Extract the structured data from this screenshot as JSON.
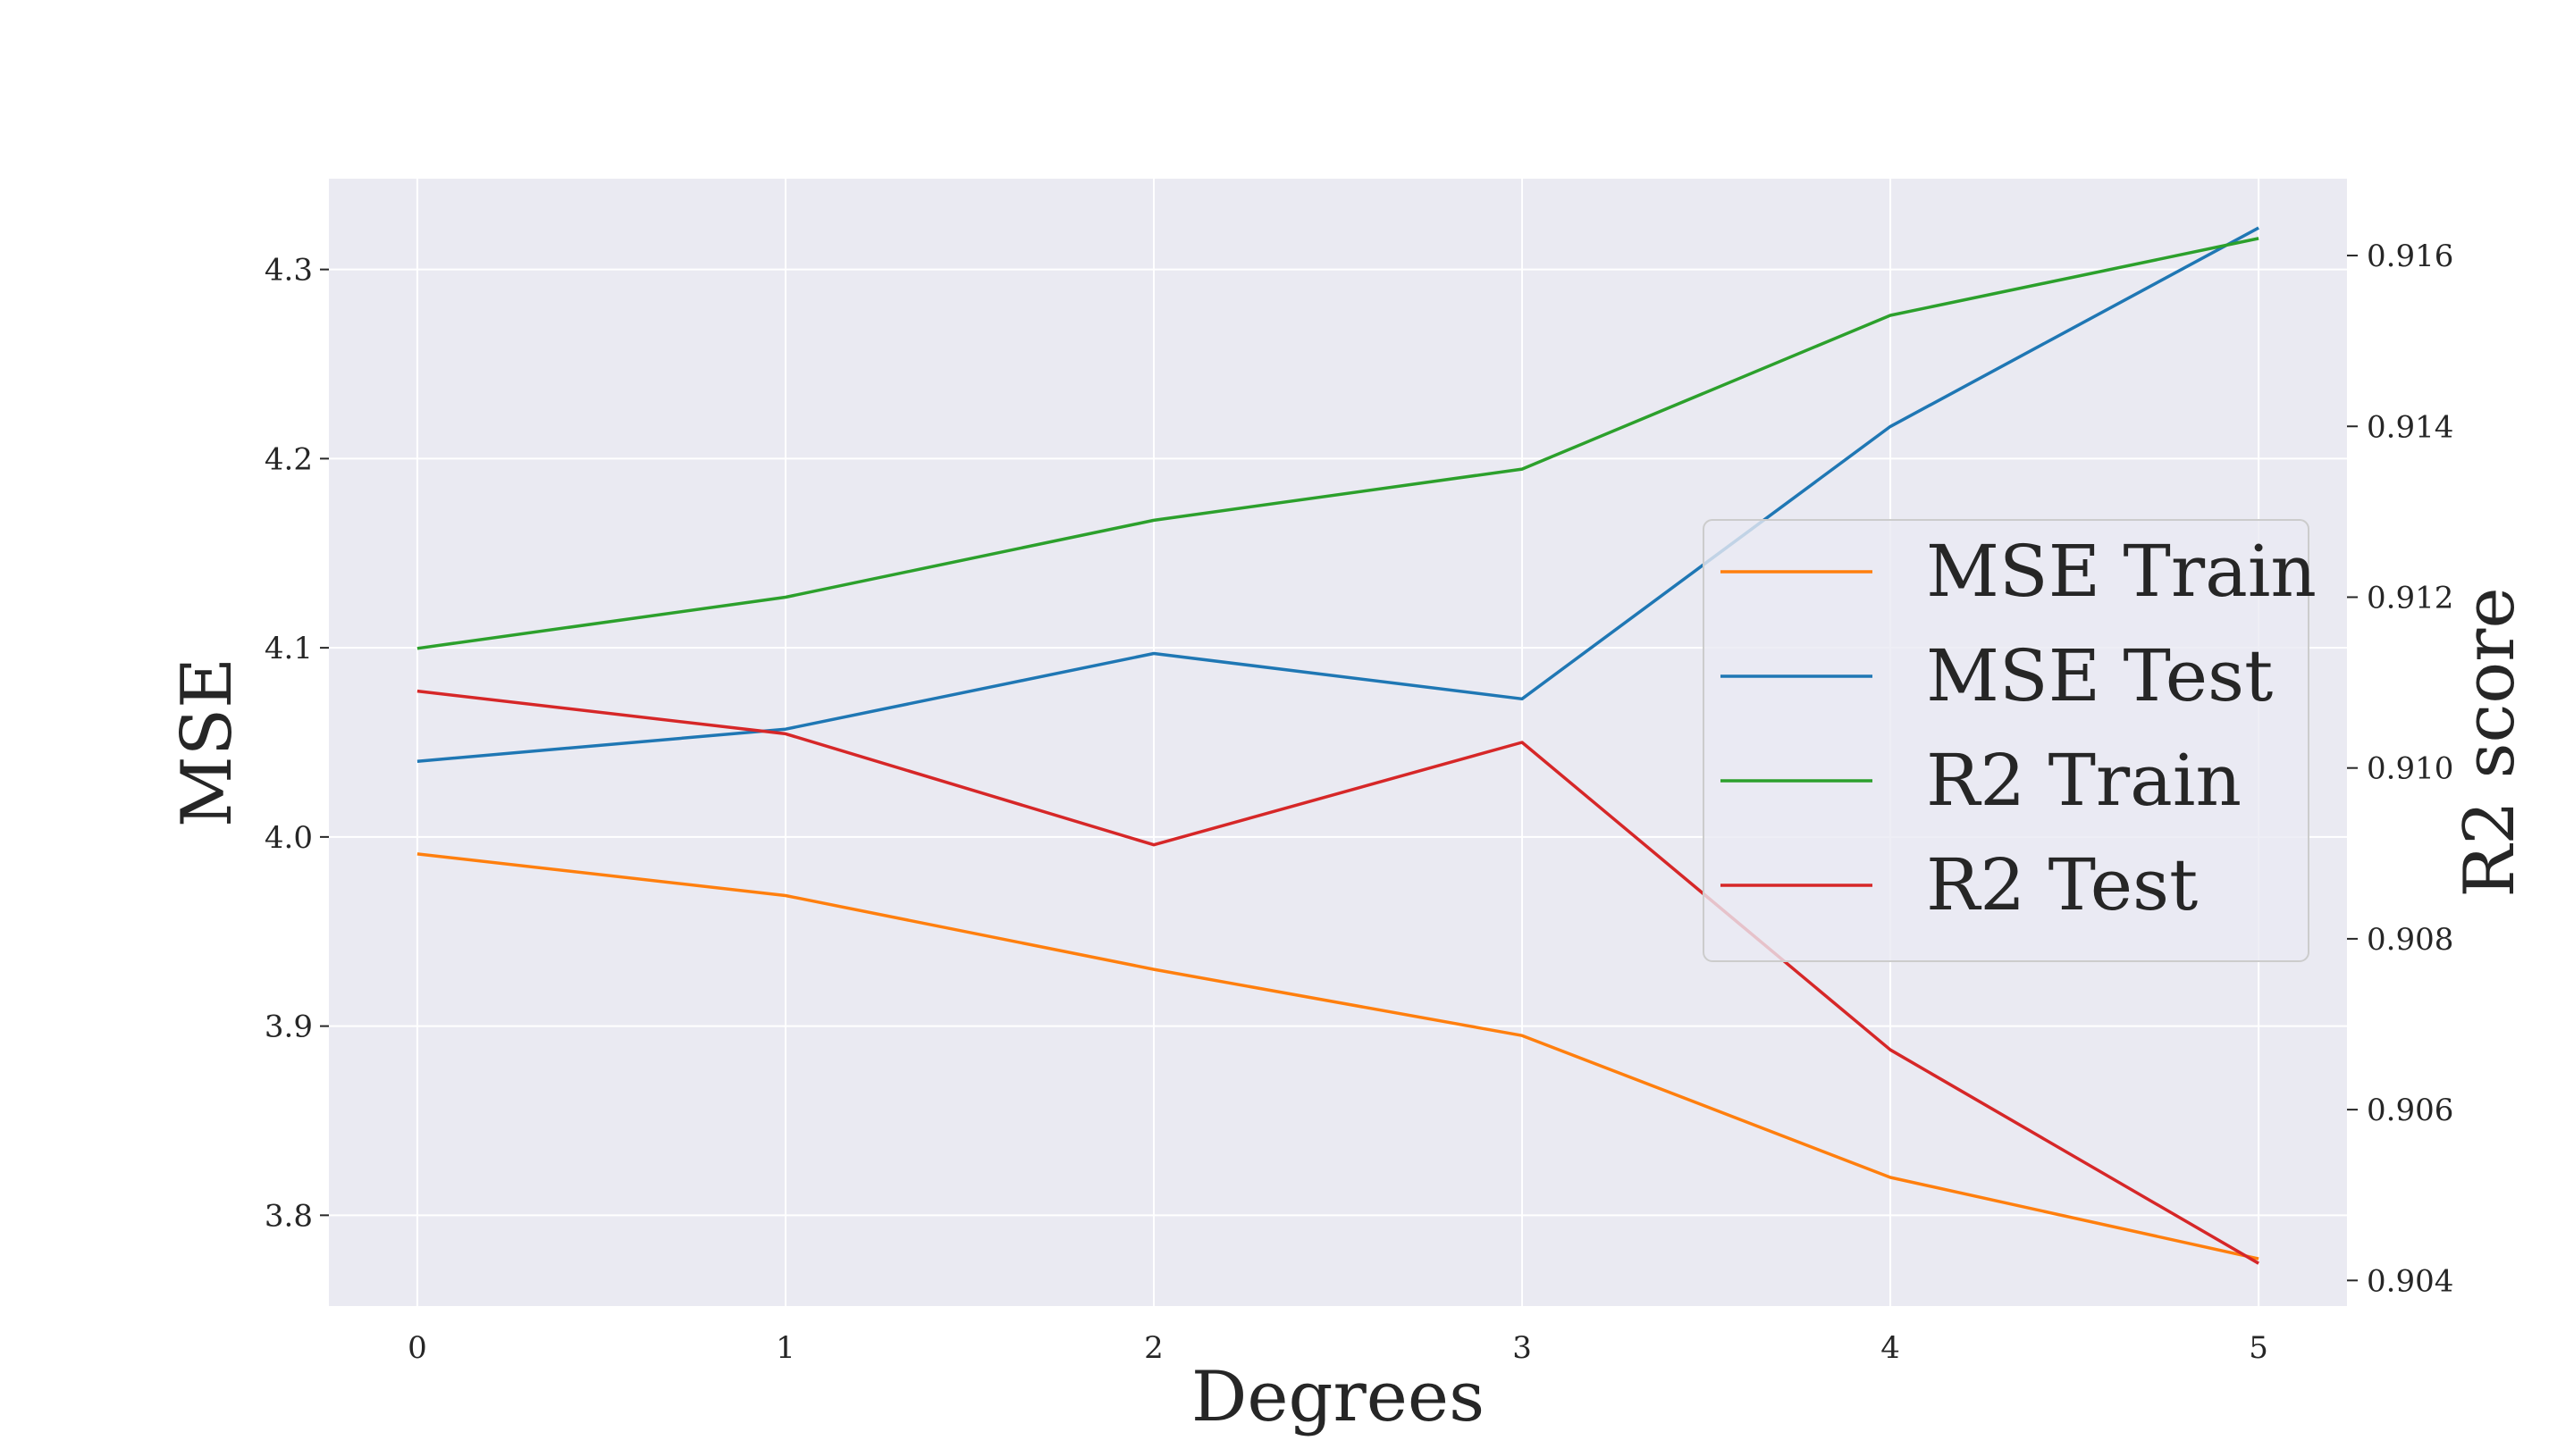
{
  "chart_data": {
    "type": "line",
    "xlabel": "Degrees",
    "ylabel": "MSE",
    "y2label": "R2 score",
    "x": [
      0,
      1,
      2,
      3,
      4,
      5
    ],
    "x_ticks": [
      "0",
      "1",
      "2",
      "3",
      "4",
      "5"
    ],
    "xlim": [
      -0.24,
      5.24
    ],
    "ylim": [
      3.752,
      4.348
    ],
    "y_ticks": [
      "3.8",
      "3.9",
      "4.0",
      "4.1",
      "4.2",
      "4.3"
    ],
    "y2lim": [
      0.9037,
      0.9169
    ],
    "y2_ticks": [
      "0.904",
      "0.906",
      "0.908",
      "0.910",
      "0.912",
      "0.914",
      "0.916"
    ],
    "grid": true,
    "background": "#eaeaf2",
    "legend_position": "center-right",
    "series": [
      {
        "name": "MSE Train",
        "axis": "left",
        "color": "#ff7f0e",
        "values": [
          3.991,
          3.969,
          3.93,
          3.895,
          3.82,
          3.777
        ]
      },
      {
        "name": "MSE Test",
        "axis": "left",
        "color": "#1f77b4",
        "values": [
          4.04,
          4.057,
          4.097,
          4.073,
          4.217,
          4.322
        ]
      },
      {
        "name": "R2 Train",
        "axis": "right",
        "color": "#2ca02c",
        "values": [
          0.9114,
          0.912,
          0.9129,
          0.9135,
          0.9153,
          0.9162
        ]
      },
      {
        "name": "R2 Test",
        "axis": "right",
        "color": "#d62728",
        "values": [
          0.9109,
          0.9104,
          0.9091,
          0.9103,
          0.9067,
          0.9042
        ]
      }
    ]
  }
}
